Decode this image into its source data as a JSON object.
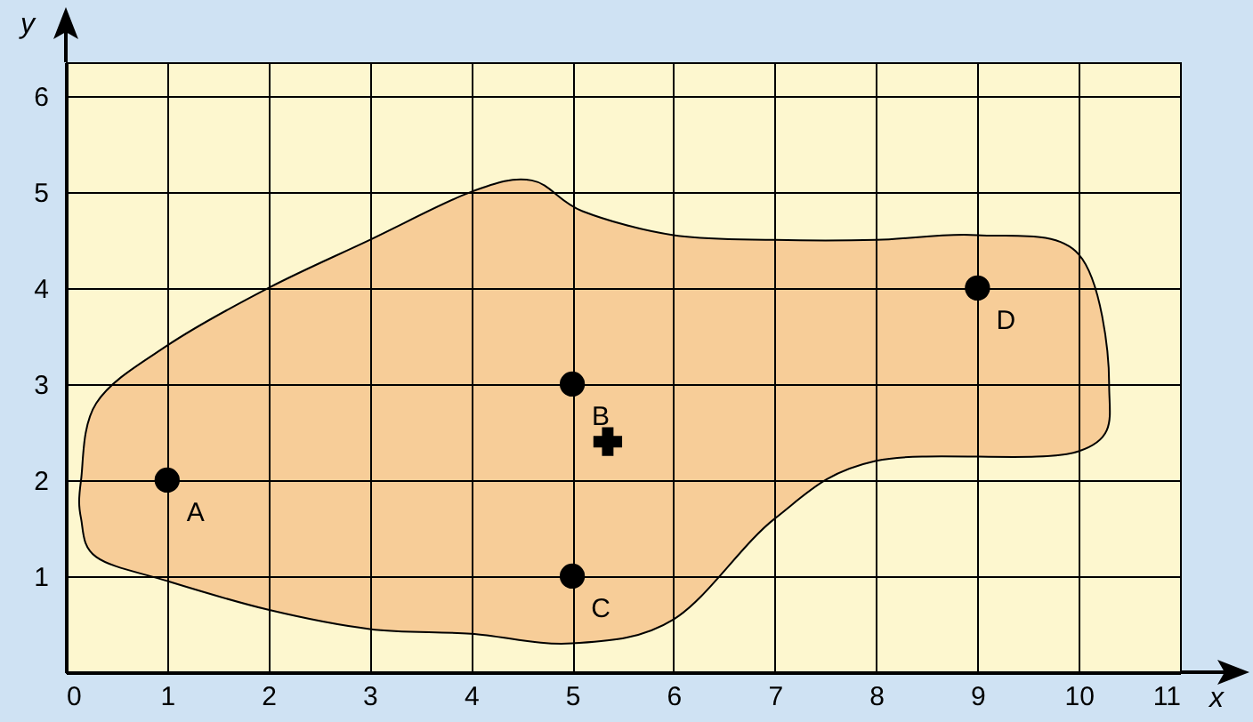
{
  "chart_data": {
    "type": "scatter",
    "xlabel": "x",
    "ylabel": "y",
    "xlim": [
      0,
      11
    ],
    "ylim": [
      0,
      6.35
    ],
    "xticks": [
      0,
      1,
      2,
      3,
      4,
      5,
      6,
      7,
      8,
      9,
      10,
      11
    ],
    "yticks": [
      1,
      2,
      3,
      4,
      5,
      6
    ],
    "grid": true,
    "series": [
      {
        "type": "area",
        "color": "#f7cd98",
        "x": [
          0.15,
          0.3,
          1,
          2,
          3,
          4,
          4.6,
          5.1,
          6,
          7,
          8,
          9,
          10,
          10.3,
          10,
          8,
          7,
          6,
          5,
          4,
          3,
          2,
          1,
          0.3,
          0.15
        ],
        "values": [
          2.0,
          2.8,
          3.4,
          4.0,
          4.5,
          5.0,
          5.12,
          4.8,
          4.55,
          4.5,
          4.5,
          4.55,
          4.35,
          3.0,
          2.3,
          2.2,
          1.6,
          0.55,
          0.3,
          0.4,
          0.45,
          0.65,
          0.95,
          1.2,
          1.6
        ]
      },
      {
        "color": "#000000",
        "marker": "circle",
        "x": [
          1,
          5,
          5,
          9
        ],
        "values": [
          2,
          3,
          1,
          4
        ]
      },
      {
        "color": "#000000",
        "marker": "cross",
        "x": [
          5.35
        ],
        "values": [
          2.4
        ]
      }
    ],
    "annotations": [
      {
        "text": "A",
        "x": 1,
        "y": 2
      },
      {
        "text": "B",
        "x": 5,
        "y": 3
      },
      {
        "text": "C",
        "x": 5,
        "y": 1
      },
      {
        "text": "D",
        "x": 9,
        "y": 4
      }
    ]
  }
}
